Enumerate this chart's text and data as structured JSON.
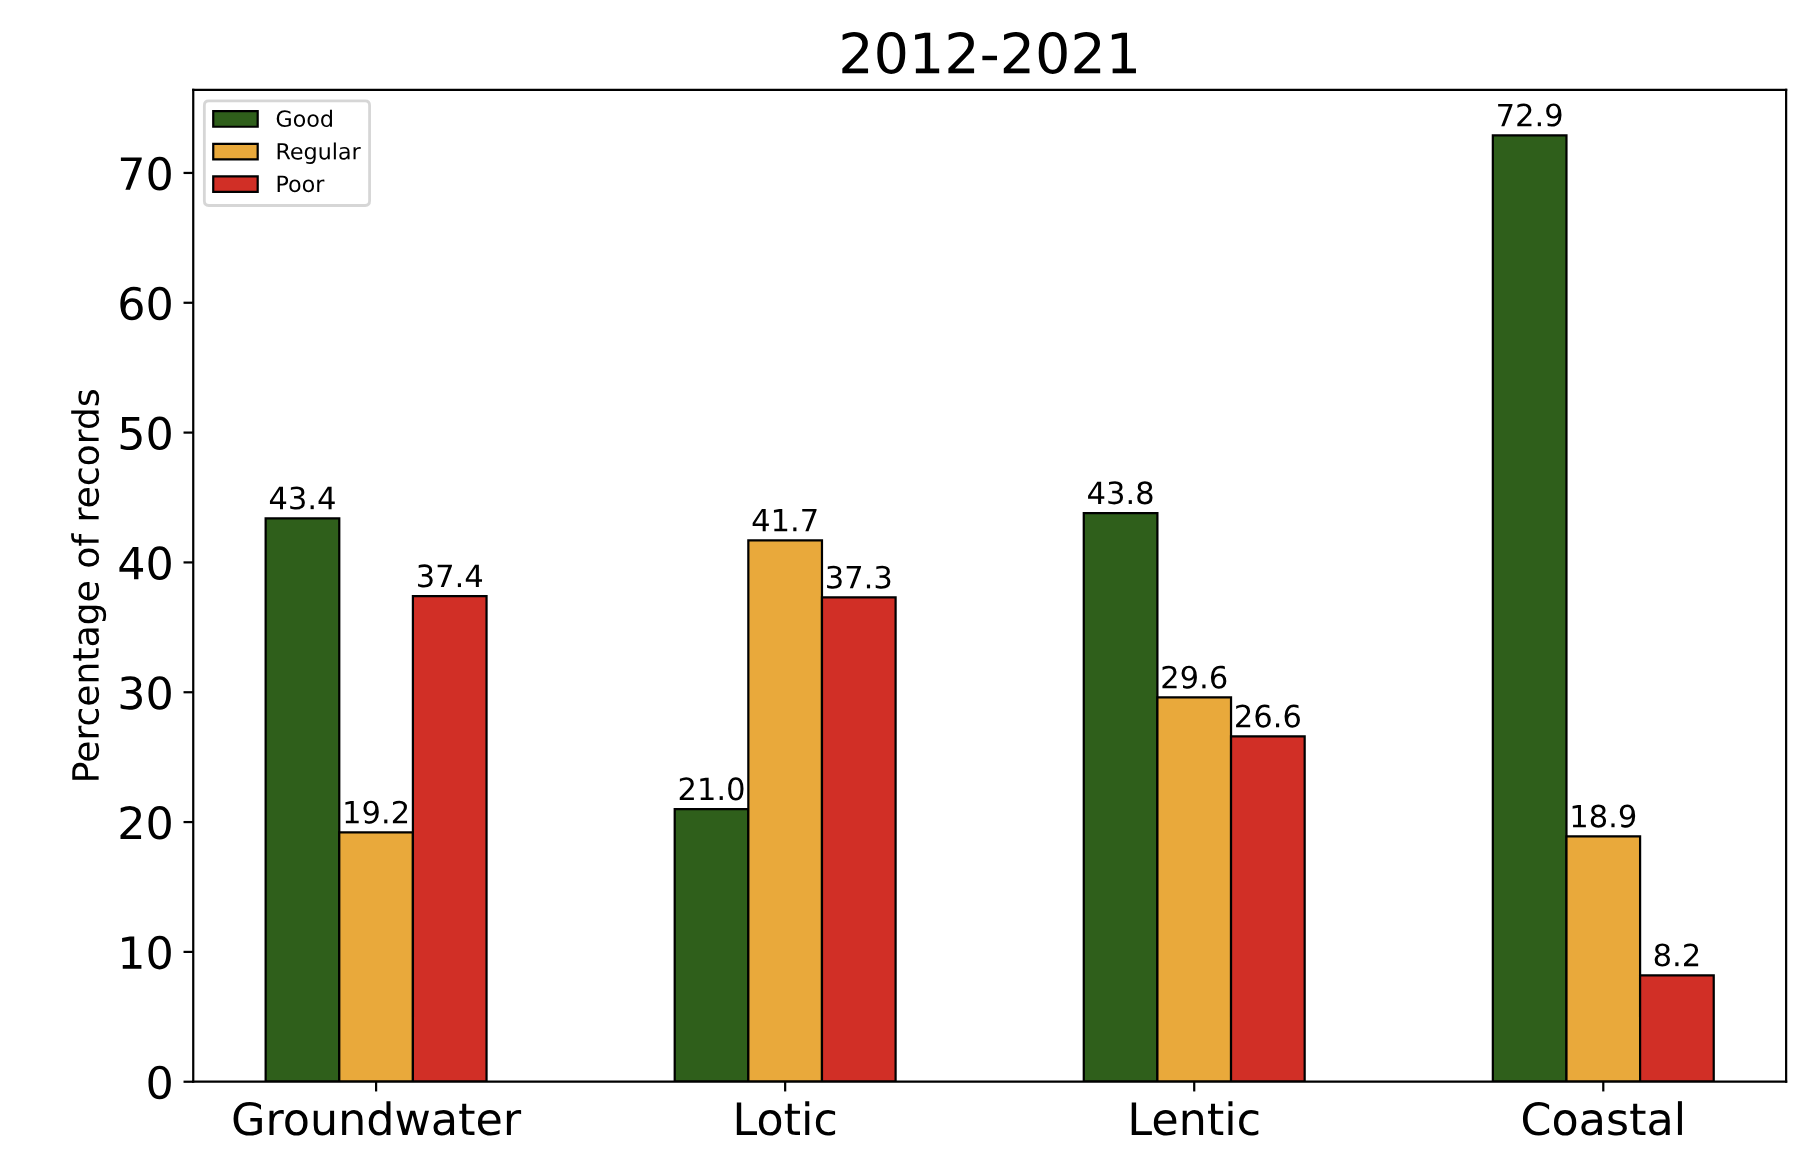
{
  "chart_data": {
    "type": "bar",
    "title": "2012-2021",
    "ylabel": "Percentage of records",
    "categories": [
      "Groundwater",
      "Lotic",
      "Lentic",
      "Coastal"
    ],
    "series": [
      {
        "name": "Good",
        "color": "#2f5f1b",
        "values": [
          43.4,
          21.0,
          43.8,
          72.9
        ]
      },
      {
        "name": "Regular",
        "color": "#e9a93b",
        "values": [
          19.2,
          41.7,
          29.6,
          18.9
        ]
      },
      {
        "name": "Poor",
        "color": "#d12f26",
        "values": [
          37.4,
          37.3,
          26.6,
          8.2
        ]
      }
    ],
    "value_labels": [
      [
        "43.4",
        "21.0",
        "43.8",
        "72.9"
      ],
      [
        "19.2",
        "41.7",
        "29.6",
        "18.9"
      ],
      [
        "37.4",
        "37.3",
        "26.6",
        "8.2"
      ]
    ],
    "ylim": [
      0,
      76.4
    ],
    "yticks": [
      0,
      10,
      20,
      30,
      40,
      50,
      60,
      70
    ],
    "legend": "top left",
    "grid": false
  }
}
